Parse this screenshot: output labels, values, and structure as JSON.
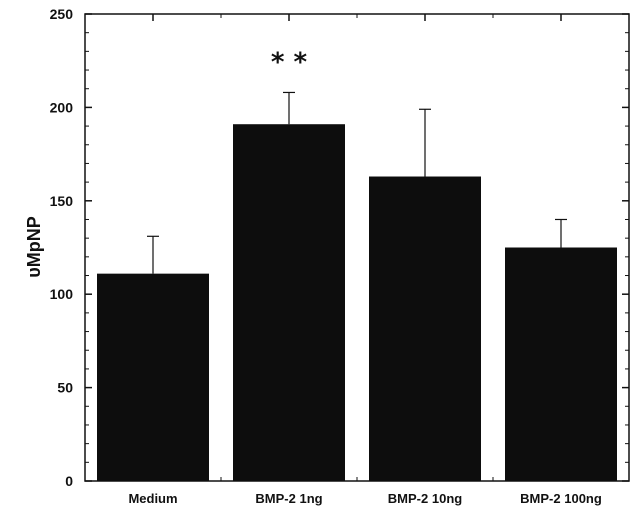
{
  "chart_data": {
    "type": "bar",
    "categories": [
      "Medium",
      "BMP-2 1ng",
      "BMP-2 10ng",
      "BMP-2 100ng"
    ],
    "values": [
      111,
      191,
      163,
      125
    ],
    "errors": [
      20,
      17,
      36,
      15
    ],
    "annotations": [
      {
        "category_index": 1,
        "text": "* *"
      }
    ],
    "title": "",
    "xlabel": "",
    "ylabel": "υMpNP",
    "ylim": [
      0,
      250
    ],
    "yticks": [
      0,
      50,
      100,
      150,
      200,
      250
    ],
    "grid": false,
    "legend": "none",
    "colors": {
      "bar": "#0d0d0d",
      "axis": "#111111",
      "background": "#ffffff"
    }
  }
}
